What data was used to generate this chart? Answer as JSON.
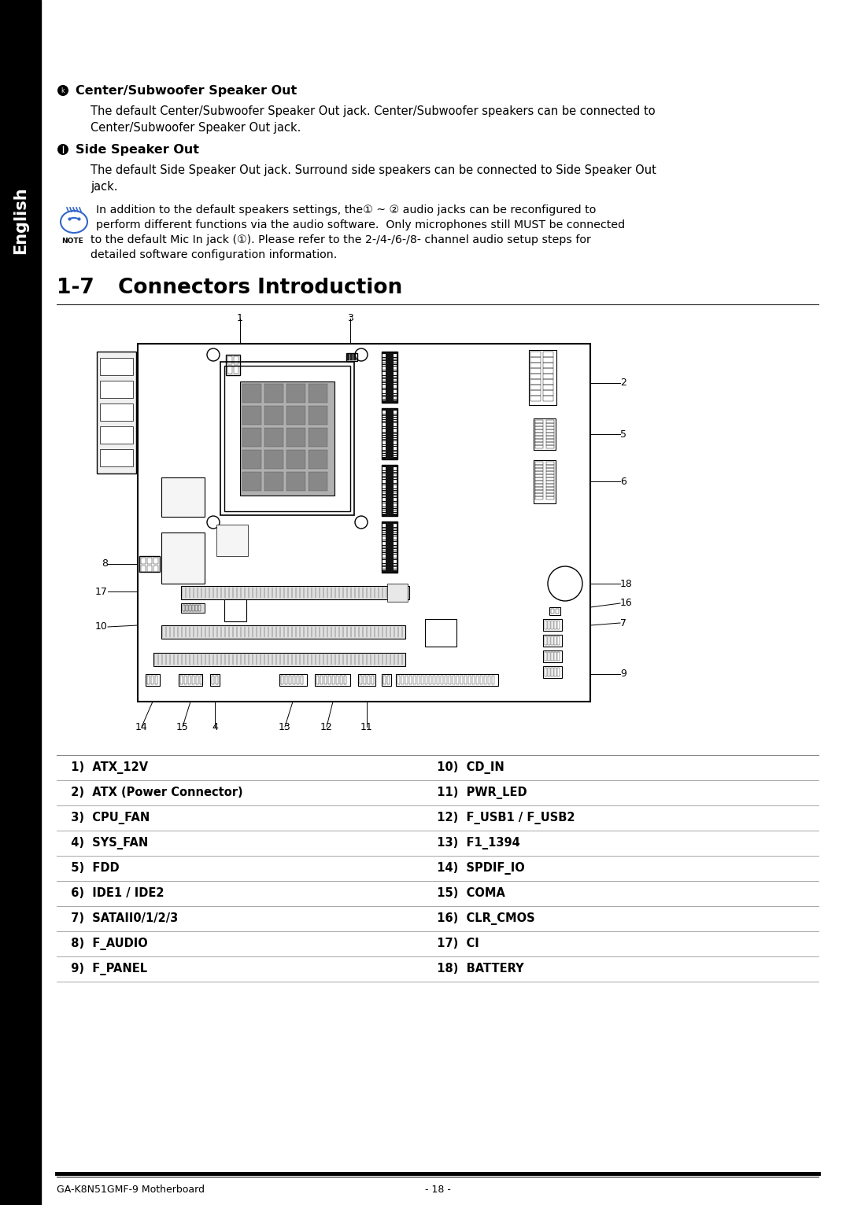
{
  "sidebar_text": "English",
  "sidebar_bg": "#000000",
  "sidebar_text_color": "#ffffff",
  "page_bg": "#ffffff",
  "section_title_center": "Center/Subwoofer Speaker Out",
  "section_body_center_1": "The default Center/Subwoofer Speaker Out jack. Center/Subwoofer speakers can be connected to",
  "section_body_center_2": "Center/Subwoofer Speaker Out jack.",
  "section_title_side": "Side Speaker Out",
  "section_body_side_1": "The default Side Speaker Out jack. Surround side speakers can be connected to Side Speaker Out",
  "section_body_side_2": "jack.",
  "note_line1": "In addition to the default speakers settings, the① ~ ② audio jacks can be reconfigured to",
  "note_line2": "perform different functions via the audio software.  Only microphones still MUST be connected",
  "note_line3": "to the default Mic In jack (①). Please refer to the 2-/4-/6-/8- channel audio setup steps for",
  "note_line4": "detailed software configuration information.",
  "section_heading_num": "1-7",
  "section_heading_title": "Connectors Introduction",
  "connector_table": [
    {
      "left_num": "1)",
      "left_name": "ATX_12V",
      "right_num": "10)",
      "right_name": "CD_IN"
    },
    {
      "left_num": "2)",
      "left_name": "ATX (Power Connector)",
      "right_num": "11)",
      "right_name": "PWR_LED"
    },
    {
      "left_num": "3)",
      "left_name": "CPU_FAN",
      "right_num": "12)",
      "right_name": "F_USB1 / F_USB2"
    },
    {
      "left_num": "4)",
      "left_name": "SYS_FAN",
      "right_num": "13)",
      "right_name": "F1_1394"
    },
    {
      "left_num": "5)",
      "left_name": "FDD",
      "right_num": "14)",
      "right_name": "SPDIF_IO"
    },
    {
      "left_num": "6)",
      "left_name": "IDE1 / IDE2",
      "right_num": "15)",
      "right_name": "COMA"
    },
    {
      "left_num": "7)",
      "left_name": "SATAII0/1/2/3",
      "right_num": "16)",
      "right_name": "CLR_CMOS"
    },
    {
      "left_num": "8)",
      "left_name": "F_AUDIO",
      "right_num": "17)",
      "right_name": "CI"
    },
    {
      "left_num": "9)",
      "left_name": "F_PANEL",
      "right_num": "18)",
      "right_name": "BATTERY"
    }
  ],
  "footer_left": "GA-K8N51GMF-9 Motherboard",
  "footer_center": "- 18 -"
}
